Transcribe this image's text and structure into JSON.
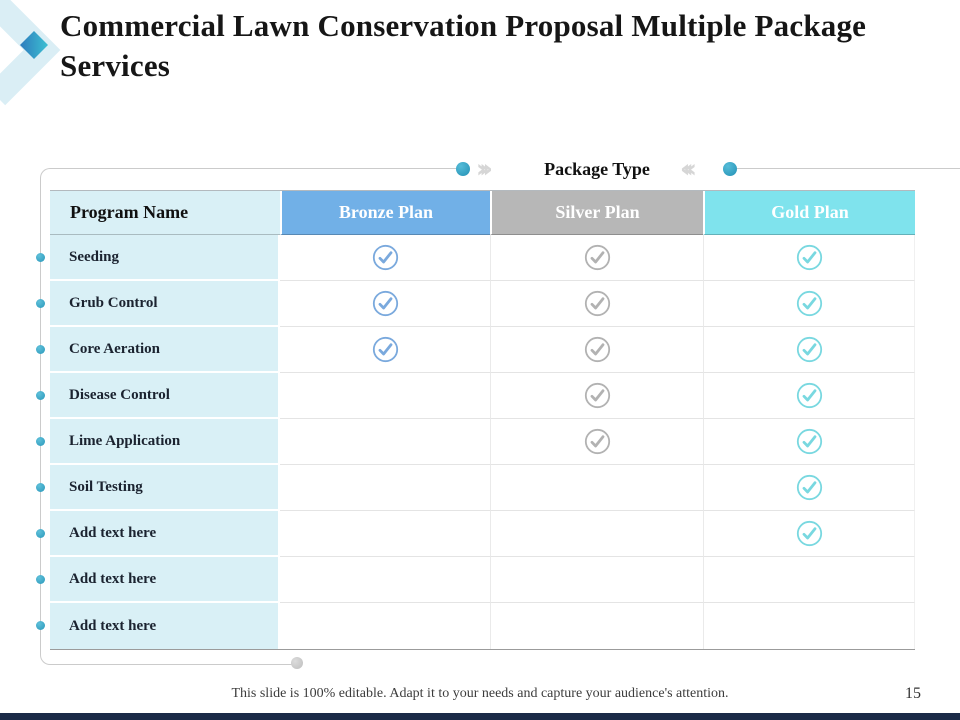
{
  "slide": {
    "title": "Commercial Lawn Conservation Proposal Multiple Package Services",
    "footer_note": "This slide is 100% editable. Adapt it to your needs and capture your audience's attention.",
    "page_number": "15"
  },
  "package_header": {
    "label": "Package Type",
    "chevrons_right": "›››",
    "chevrons_left": "‹‹‹"
  },
  "table": {
    "program_column_header": "Program Name",
    "plans": [
      {
        "key": "bronze",
        "label": "Bronze Plan",
        "header_bg": "#71b0e7",
        "check_color": "#7aa9dd"
      },
      {
        "key": "silver",
        "label": "Silver Plan",
        "header_bg": "#b7b7b7",
        "check_color": "#b2b2b2"
      },
      {
        "key": "gold",
        "label": "Gold Plan",
        "header_bg": "#7fe3ed",
        "check_color": "#79d8e0"
      }
    ],
    "rows": [
      {
        "name": "Seeding",
        "bronze": true,
        "silver": true,
        "gold": true
      },
      {
        "name": "Grub Control",
        "bronze": true,
        "silver": true,
        "gold": true
      },
      {
        "name": "Core Aeration",
        "bronze": true,
        "silver": true,
        "gold": true
      },
      {
        "name": "Disease Control",
        "bronze": false,
        "silver": true,
        "gold": true
      },
      {
        "name": "Lime Application",
        "bronze": false,
        "silver": true,
        "gold": true
      },
      {
        "name": "Soil Testing",
        "bronze": false,
        "silver": false,
        "gold": true
      },
      {
        "name": "Add text here",
        "bronze": false,
        "silver": false,
        "gold": true
      },
      {
        "name": "Add text here",
        "bronze": false,
        "silver": false,
        "gold": false
      },
      {
        "name": "Add text here",
        "bronze": false,
        "silver": false,
        "gold": false
      }
    ]
  },
  "colors": {
    "label_cell_bg": "#d9f0f6",
    "accent_dot": "#2d9cbe",
    "frame_line": "#cbcbcb",
    "bottom_bar": "#1b2a47"
  }
}
